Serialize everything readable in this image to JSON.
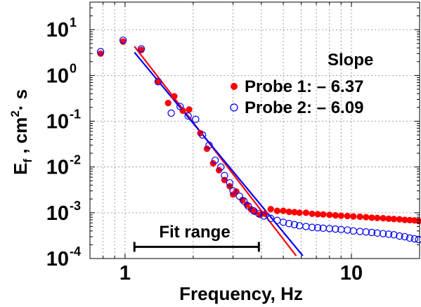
{
  "chart_data": {
    "type": "scatter",
    "xscale": "log",
    "yscale": "log",
    "xlim": [
      0.7,
      20
    ],
    "ylim": [
      0.0001,
      40
    ],
    "grid": true,
    "xlabel": "Frequency, Hz",
    "ylabel": {
      "base": "E",
      "sub": "f",
      "rest": " , cm",
      "sup": "2",
      "tail": "· s"
    },
    "xticks": [
      {
        "value": 1,
        "label": "1"
      },
      {
        "value": 10,
        "label": "10"
      }
    ],
    "yticks": [
      {
        "value": 10,
        "base": "10",
        "exp": "1"
      },
      {
        "value": 1,
        "base": "10",
        "exp": "0"
      },
      {
        "value": 0.1,
        "base": "10",
        "exp": "-1"
      },
      {
        "value": 0.01,
        "base": "10",
        "exp": "-2"
      },
      {
        "value": 0.001,
        "base": "10",
        "exp": "-3"
      },
      {
        "value": 0.0001,
        "base": "10",
        "exp": "-4"
      }
    ],
    "legend": {
      "title": "Slope",
      "placement": "top-right",
      "entries": [
        {
          "label": "Probe 1: – 6.37",
          "color": "#ff0000",
          "marker": "filled-circle"
        },
        {
          "label": "Probe 2: – 6.09",
          "color": "#0000ff",
          "marker": "open-circle"
        }
      ]
    },
    "fit_range": {
      "label": "Fit range",
      "x": [
        1.1,
        3.9
      ],
      "y": 0.00018
    },
    "series": [
      {
        "name": "Probe 1: – 6.37",
        "color": "#ff0000",
        "marker": "filled",
        "points": [
          [
            0.78,
            3.0
          ],
          [
            0.98,
            5.5
          ],
          [
            1.18,
            3.6
          ],
          [
            1.4,
            0.75
          ],
          [
            1.55,
            0.25
          ],
          [
            1.65,
            0.35
          ],
          [
            1.8,
            0.17
          ],
          [
            1.92,
            0.18
          ],
          [
            2.15,
            0.055
          ],
          [
            2.3,
            0.025
          ],
          [
            2.45,
            0.012
          ],
          [
            2.6,
            0.0085
          ],
          [
            2.75,
            0.0052
          ],
          [
            2.9,
            0.0038
          ],
          [
            3.0,
            0.0025
          ],
          [
            3.1,
            0.0029
          ],
          [
            3.3,
            0.0019
          ],
          [
            3.45,
            0.0015
          ],
          [
            3.6,
            0.0012
          ],
          [
            3.75,
            0.00105
          ],
          [
            3.95,
            0.0009
          ],
          [
            4.15,
            0.00095
          ],
          [
            4.4,
            0.0012
          ],
          [
            4.7,
            0.0011
          ],
          [
            5.0,
            0.0011
          ],
          [
            5.3,
            0.00105
          ],
          [
            5.6,
            0.00103
          ],
          [
            5.9,
            0.001
          ],
          [
            6.3,
            0.001
          ],
          [
            6.7,
            0.00095
          ],
          [
            7.1,
            0.00093
          ],
          [
            7.5,
            0.00092
          ],
          [
            8.0,
            0.0009
          ],
          [
            8.5,
            0.00088
          ],
          [
            9.0,
            0.00086
          ],
          [
            9.6,
            0.00085
          ],
          [
            10.2,
            0.00083
          ],
          [
            10.9,
            0.00082
          ],
          [
            11.6,
            0.0008
          ],
          [
            12.3,
            0.00078
          ],
          [
            13.0,
            0.00077
          ],
          [
            13.8,
            0.00076
          ],
          [
            14.6,
            0.00074
          ],
          [
            15.4,
            0.00073
          ],
          [
            16.3,
            0.00072
          ],
          [
            17.2,
            0.0007
          ],
          [
            18.1,
            0.00069
          ],
          [
            19.0,
            0.00068
          ],
          [
            19.8,
            0.00066
          ]
        ],
        "fit": {
          "x": [
            1.1,
            5.7
          ],
          "y": [
            4.3,
            0.000115
          ]
        }
      },
      {
        "name": "Probe 2: – 6.09",
        "color": "#0000ff",
        "marker": "open",
        "points": [
          [
            0.78,
            3.3
          ],
          [
            0.98,
            5.9
          ],
          [
            1.18,
            3.8
          ],
          [
            1.4,
            0.73
          ],
          [
            1.6,
            0.15
          ],
          [
            1.75,
            0.21
          ],
          [
            1.9,
            0.13
          ],
          [
            2.05,
            0.11
          ],
          [
            2.2,
            0.05
          ],
          [
            2.35,
            0.03
          ],
          [
            2.5,
            0.014
          ],
          [
            2.65,
            0.01
          ],
          [
            2.75,
            0.0065
          ],
          [
            2.9,
            0.0045
          ],
          [
            3.0,
            0.003
          ],
          [
            3.2,
            0.0023
          ],
          [
            3.35,
            0.0018
          ],
          [
            3.5,
            0.0014
          ],
          [
            3.7,
            0.0011
          ],
          [
            3.9,
            0.00095
          ],
          [
            4.1,
            0.00085
          ],
          [
            4.4,
            0.00075
          ],
          [
            4.7,
            0.00068
          ],
          [
            5.0,
            0.00062
          ],
          [
            5.3,
            0.00058
          ],
          [
            5.6,
            0.00055
          ],
          [
            5.9,
            0.00052
          ],
          [
            6.3,
            0.0005
          ],
          [
            6.7,
            0.00048
          ],
          [
            7.1,
            0.00047
          ],
          [
            7.5,
            0.00046
          ],
          [
            8.0,
            0.00045
          ],
          [
            8.5,
            0.00044
          ],
          [
            9.0,
            0.00043
          ],
          [
            9.6,
            0.00042
          ],
          [
            10.2,
            0.0004
          ],
          [
            10.9,
            0.00039
          ],
          [
            11.6,
            0.00038
          ],
          [
            12.3,
            0.00037
          ],
          [
            13.0,
            0.00036
          ],
          [
            13.8,
            0.00035
          ],
          [
            14.6,
            0.00034
          ],
          [
            15.4,
            0.00033
          ],
          [
            16.3,
            0.00031
          ],
          [
            17.2,
            0.0003
          ],
          [
            18.1,
            0.00028
          ],
          [
            19.0,
            0.00027
          ],
          [
            19.8,
            0.00026
          ]
        ],
        "fit": {
          "x": [
            1.1,
            6.1
          ],
          "y": [
            3.2,
            0.000115
          ]
        }
      }
    ]
  }
}
